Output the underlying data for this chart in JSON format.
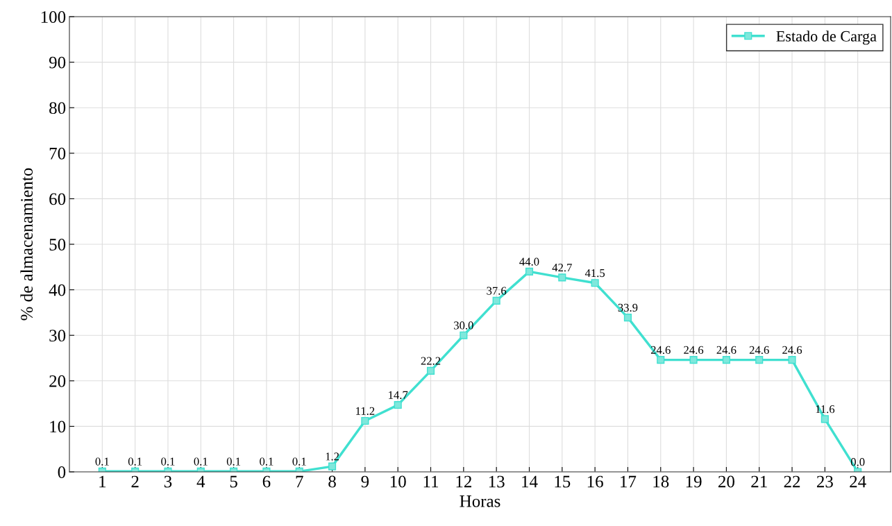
{
  "chart_data": {
    "type": "line",
    "xlabel": "Horas",
    "ylabel": "% de almacenamiento",
    "x": [
      1,
      2,
      3,
      4,
      5,
      6,
      7,
      8,
      9,
      10,
      11,
      12,
      13,
      14,
      15,
      16,
      17,
      18,
      19,
      20,
      21,
      22,
      23,
      24
    ],
    "series": [
      {
        "name": "Estado de Carga",
        "color": "#40e0d0",
        "values": [
          0.1,
          0.1,
          0.1,
          0.1,
          0.1,
          0.1,
          0.1,
          1.2,
          11.2,
          14.7,
          22.2,
          30.0,
          37.6,
          44.0,
          42.7,
          41.5,
          33.9,
          24.6,
          24.6,
          24.6,
          24.6,
          24.6,
          11.6,
          0.0
        ],
        "value_labels": [
          "0.1",
          "0.1",
          "0.1",
          "0.1",
          "0.1",
          "0.1",
          "0.1",
          "1.2",
          "11.2",
          "14.7",
          "22.2",
          "30.0",
          "37.6",
          "44.0",
          "42.7",
          "41.5",
          "33.9",
          "24.6",
          "24.6",
          "24.6",
          "24.6",
          "24.6",
          "11.6",
          "0.0"
        ]
      }
    ],
    "xlim": [
      0,
      25
    ],
    "xticks": [
      1,
      2,
      3,
      4,
      5,
      6,
      7,
      8,
      9,
      10,
      11,
      12,
      13,
      14,
      15,
      16,
      17,
      18,
      19,
      20,
      21,
      22,
      23,
      24
    ],
    "ylim": [
      0,
      100
    ],
    "yticks": [
      0,
      10,
      20,
      30,
      40,
      50,
      60,
      70,
      80,
      90,
      100
    ],
    "grid": true,
    "legend": "top right",
    "marker": "square",
    "line_style": "solid"
  }
}
